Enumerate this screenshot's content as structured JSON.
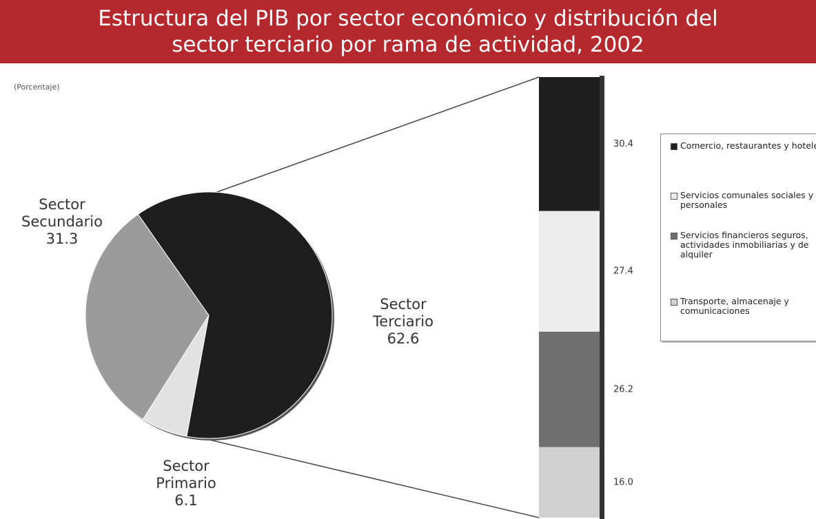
{
  "chart_data": [
    {
      "type": "pie",
      "title": "Estructura del PIB por sector económico y distribución del sector terciario por rama de actividad, 2002",
      "subtitle": "(Porcentaje)",
      "categories": [
        "Sector Terciario",
        "Sector Primario",
        "Sector Secundario"
      ],
      "values": [
        62.6,
        6.1,
        31.3
      ],
      "colors": [
        "#1e1e1e",
        "#e2e2e2",
        "#9b9b9b"
      ]
    },
    {
      "type": "bar",
      "stacked": true,
      "categories": [
        "Comercio, restaurantes y hoteles",
        "Servicios comunales sociales y personales",
        "Servicios financieros seguros, actividades inmobiliarias y de alquiler",
        "Transporte, almacenaje y comunicaciones"
      ],
      "values": [
        30.4,
        27.4,
        26.2,
        16.0
      ],
      "value_labels": [
        "30.4",
        "27.4",
        "26.2",
        "16.0"
      ],
      "colors": [
        "#1e1e1e",
        "#ededed",
        "#6f6f6f",
        "#d0d0d0"
      ],
      "legend": "right"
    }
  ]
}
